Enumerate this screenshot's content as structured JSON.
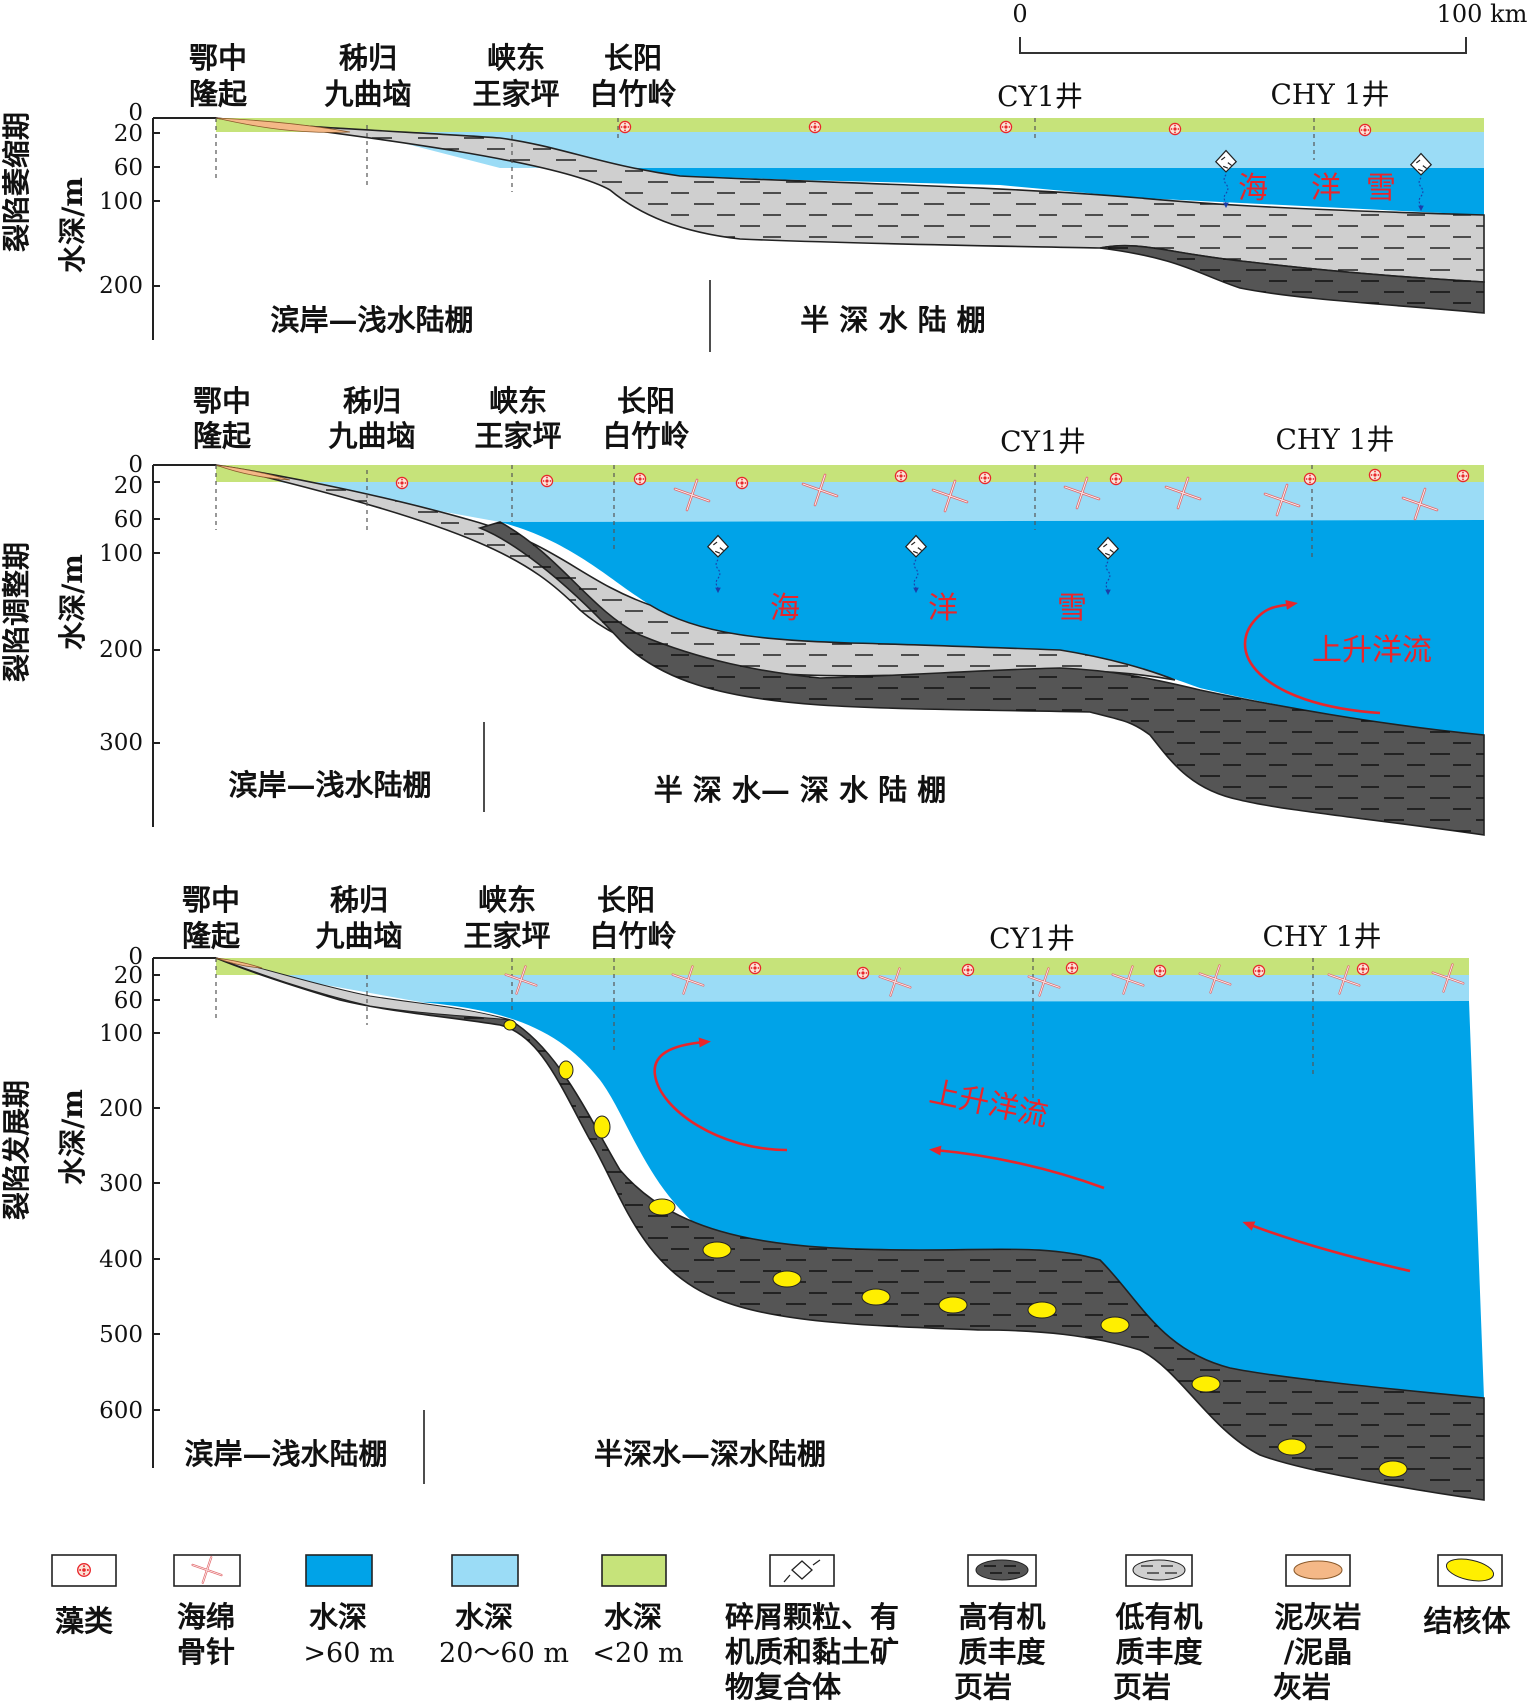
{
  "colors": {
    "deep_water": "#00a3e8",
    "mid_water": "#9bdcf6",
    "shallow_water": "#c6e37a",
    "high_toc_shale": "#555555",
    "low_toc_shale": "#cfcfcf",
    "marl": "#f4b887",
    "nodule": "#ffef00",
    "current_arrow": "#e8262b"
  },
  "scale_bar": {
    "start": "0",
    "end": "100 km"
  },
  "locations": {
    "loc1": [
      "鄂中",
      "隆起"
    ],
    "loc2": [
      "秭归",
      "九曲垴"
    ],
    "loc3": [
      "峡东",
      "王家坪"
    ],
    "loc4": [
      "长阳",
      "白竹岭"
    ],
    "well1": "CY1井",
    "well2": "CHY 1井"
  },
  "panels": [
    {
      "stage": "裂陷萎缩期",
      "axis_label": "水深/m",
      "ticks": [
        "0",
        "20",
        "60",
        "100",
        "200"
      ],
      "zone_left": "滨岸—浅水陆棚",
      "zone_right": "半 深 水 陆 棚",
      "snow": [
        "海",
        "洋",
        "雪"
      ]
    },
    {
      "stage": "裂陷调整期",
      "axis_label": "水深/m",
      "ticks": [
        "0",
        "20",
        "60",
        "100",
        "200",
        "300"
      ],
      "zone_left": "滨岸—浅水陆棚",
      "zone_right": "半 深 水— 深 水 陆 棚",
      "snow": [
        "海",
        "洋",
        "雪"
      ],
      "current": "上升洋流"
    },
    {
      "stage": "裂陷发展期",
      "axis_label": "水深/m",
      "ticks": [
        "0",
        "20",
        "60",
        "100",
        "200",
        "300",
        "400",
        "500",
        "600"
      ],
      "zone_left": "滨岸—浅水陆棚",
      "zone_right": "半深水—深水陆棚",
      "current": "上升洋流"
    }
  ],
  "legend": [
    {
      "icon": "algae-icon",
      "lines": [
        "藻类"
      ]
    },
    {
      "icon": "sponge-spicule-icon",
      "lines": [
        "海绵",
        "骨针"
      ]
    },
    {
      "icon": "deep-water-swatch",
      "lines": [
        "水深",
        ">60 m"
      ]
    },
    {
      "icon": "mid-water-swatch",
      "lines": [
        "水深",
        "20～60 m"
      ]
    },
    {
      "icon": "shallow-water-swatch",
      "lines": [
        "水深",
        "<20 m"
      ]
    },
    {
      "icon": "marine-snow-icon",
      "lines": [
        "碎屑颗粒、有",
        "机质和黏土矿",
        "物复合体"
      ]
    },
    {
      "icon": "high-toc-shale-icon",
      "lines": [
        "高有机",
        "质丰度",
        "页岩"
      ]
    },
    {
      "icon": "low-toc-shale-icon",
      "lines": [
        "低有机",
        "质丰度",
        "页岩"
      ]
    },
    {
      "icon": "marl-icon",
      "lines": [
        "泥灰岩",
        "/泥晶",
        "灰岩"
      ]
    },
    {
      "icon": "nodule-icon",
      "lines": [
        "结核体"
      ]
    }
  ]
}
